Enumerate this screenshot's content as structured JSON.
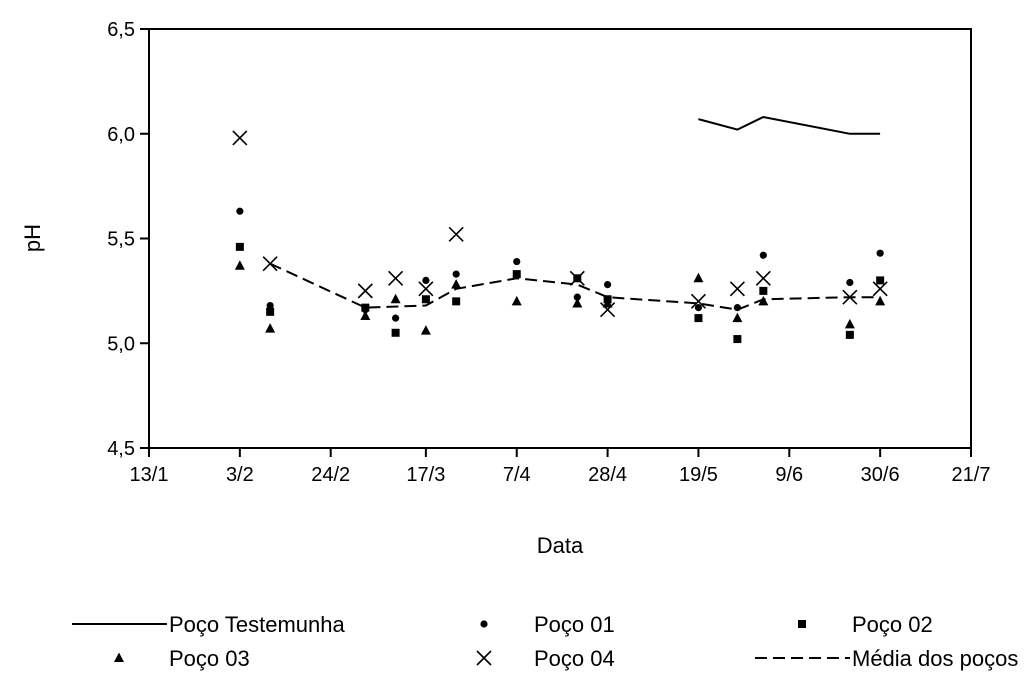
{
  "chart_data": {
    "type": "scatter",
    "title": "",
    "xlabel": "Data",
    "ylabel": "pH",
    "xlim": [
      "2024-01-13",
      "2024-07-21"
    ],
    "ylim": [
      4.5,
      6.5
    ],
    "x_ticks": [
      {
        "date": "2024-01-13",
        "label": "13/1"
      },
      {
        "date": "2024-02-03",
        "label": "3/2"
      },
      {
        "date": "2024-02-24",
        "label": "24/2"
      },
      {
        "date": "2024-03-17",
        "label": "17/3"
      },
      {
        "date": "2024-04-07",
        "label": "7/4"
      },
      {
        "date": "2024-04-28",
        "label": "28/4"
      },
      {
        "date": "2024-05-19",
        "label": "19/5"
      },
      {
        "date": "2024-06-09",
        "label": "9/6"
      },
      {
        "date": "2024-06-30",
        "label": "30/6"
      },
      {
        "date": "2024-07-21",
        "label": "21/7"
      }
    ],
    "y_ticks": [
      {
        "value": 4.5,
        "label": "4,5"
      },
      {
        "value": 5.0,
        "label": "5,0"
      },
      {
        "value": 5.5,
        "label": "5,5"
      },
      {
        "value": 6.0,
        "label": "6,0"
      },
      {
        "value": 6.5,
        "label": "6,5"
      }
    ],
    "grid": false,
    "legend_position": "bottom",
    "series": [
      {
        "name": "Poço Testemunha",
        "marker": "line-solid",
        "points": [
          [
            "2024-05-19",
            6.07
          ],
          [
            "2024-05-28",
            6.02
          ],
          [
            "2024-06-03",
            6.08
          ],
          [
            "2024-06-23",
            6.0
          ],
          [
            "2024-06-30",
            6.0
          ]
        ]
      },
      {
        "name": "Poço 01",
        "marker": "circle",
        "points": [
          [
            "2024-02-03",
            5.63
          ],
          [
            "2024-02-10",
            5.18
          ],
          [
            "2024-02-10",
            5.16
          ],
          [
            "2024-03-03",
            5.16
          ],
          [
            "2024-03-10",
            5.12
          ],
          [
            "2024-03-17",
            5.3
          ],
          [
            "2024-03-24",
            5.33
          ],
          [
            "2024-04-07",
            5.39
          ],
          [
            "2024-04-21",
            5.22
          ],
          [
            "2024-04-28",
            5.28
          ],
          [
            "2024-05-19",
            5.17
          ],
          [
            "2024-05-28",
            5.17
          ],
          [
            "2024-06-03",
            5.42
          ],
          [
            "2024-06-23",
            5.29
          ],
          [
            "2024-06-30",
            5.43
          ]
        ]
      },
      {
        "name": "Poço 02",
        "marker": "square",
        "points": [
          [
            "2024-02-03",
            5.46
          ],
          [
            "2024-02-10",
            5.15
          ],
          [
            "2024-03-03",
            5.17
          ],
          [
            "2024-03-10",
            5.05
          ],
          [
            "2024-03-17",
            5.21
          ],
          [
            "2024-03-24",
            5.2
          ],
          [
            "2024-04-07",
            5.33
          ],
          [
            "2024-04-21",
            5.31
          ],
          [
            "2024-04-28",
            5.21
          ],
          [
            "2024-05-19",
            5.12
          ],
          [
            "2024-05-28",
            5.02
          ],
          [
            "2024-06-03",
            5.25
          ],
          [
            "2024-06-23",
            5.04
          ],
          [
            "2024-06-30",
            5.3
          ]
        ]
      },
      {
        "name": "Poço 03",
        "marker": "triangle",
        "points": [
          [
            "2024-02-03",
            5.37
          ],
          [
            "2024-02-10",
            5.07
          ],
          [
            "2024-03-03",
            5.13
          ],
          [
            "2024-03-10",
            5.21
          ],
          [
            "2024-03-17",
            5.06
          ],
          [
            "2024-03-24",
            5.28
          ],
          [
            "2024-04-07",
            5.2
          ],
          [
            "2024-04-21",
            5.19
          ],
          [
            "2024-04-28",
            5.19
          ],
          [
            "2024-05-19",
            5.31
          ],
          [
            "2024-05-28",
            5.12
          ],
          [
            "2024-06-03",
            5.2
          ],
          [
            "2024-06-23",
            5.09
          ],
          [
            "2024-06-30",
            5.2
          ]
        ]
      },
      {
        "name": "Poço 04",
        "marker": "x",
        "points": [
          [
            "2024-02-03",
            5.98
          ],
          [
            "2024-02-10",
            5.38
          ],
          [
            "2024-03-03",
            5.25
          ],
          [
            "2024-03-10",
            5.31
          ],
          [
            "2024-03-17",
            5.26
          ],
          [
            "2024-03-24",
            5.52
          ],
          [
            "2024-04-21",
            5.31
          ],
          [
            "2024-04-28",
            5.16
          ],
          [
            "2024-05-19",
            5.2
          ],
          [
            "2024-05-28",
            5.26
          ],
          [
            "2024-06-03",
            5.31
          ],
          [
            "2024-06-23",
            5.22
          ],
          [
            "2024-06-30",
            5.26
          ]
        ]
      },
      {
        "name": "Média dos poços",
        "marker": "line-dashed",
        "points": [
          [
            "2024-02-10",
            5.38
          ],
          [
            "2024-03-03",
            5.17
          ],
          [
            "2024-03-17",
            5.18
          ],
          [
            "2024-03-24",
            5.26
          ],
          [
            "2024-04-07",
            5.31
          ],
          [
            "2024-04-21",
            5.28
          ],
          [
            "2024-04-28",
            5.22
          ],
          [
            "2024-05-19",
            5.19
          ],
          [
            "2024-05-28",
            5.16
          ],
          [
            "2024-06-03",
            5.21
          ],
          [
            "2024-06-23",
            5.22
          ],
          [
            "2024-06-30",
            5.22
          ]
        ]
      }
    ]
  }
}
